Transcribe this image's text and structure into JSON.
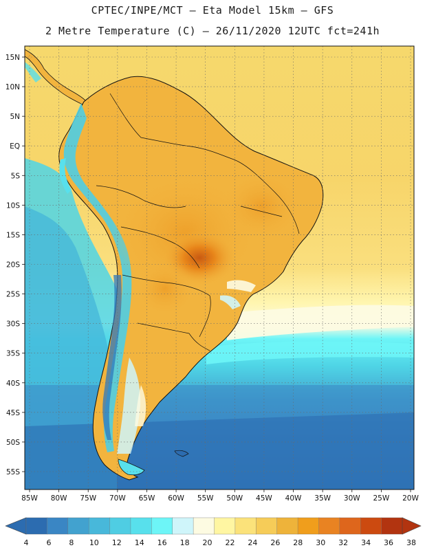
{
  "header": {
    "line1": "CPTEC/INPE/MCT –  Eta Model 15km – GFS",
    "line2": "2 Metre Temperature (C) – 26/11/2020 12UTC fct=241h"
  },
  "axes": {
    "lat_labels": [
      "15N",
      "10N",
      "5N",
      "EQ",
      "5S",
      "10S",
      "15S",
      "20S",
      "25S",
      "30S",
      "35S",
      "40S",
      "45S",
      "50S",
      "55S"
    ],
    "lon_labels": [
      "85W",
      "80W",
      "75W",
      "70W",
      "65W",
      "60W",
      "55W",
      "50W",
      "45W",
      "40W",
      "35W",
      "30W",
      "25W",
      "20W"
    ]
  },
  "colorbar": {
    "labels": [
      "4",
      "6",
      "8",
      "10",
      "12",
      "14",
      "16",
      "18",
      "20",
      "22",
      "24",
      "26",
      "28",
      "30",
      "32",
      "34",
      "36",
      "38"
    ],
    "colors": [
      "#2c6cb0",
      "#3a86c4",
      "#42a2cf",
      "#48b8da",
      "#4fcde3",
      "#58e0ec",
      "#6df5f7",
      "#cff5fa",
      "#fdfbe2",
      "#fff6a2",
      "#fbe27a",
      "#f6cc58",
      "#eeb33a",
      "#f09e1c",
      "#e98322",
      "#de661c",
      "#cc4a10",
      "#b23410"
    ]
  },
  "palette": {
    "land_warm": "#f2b43e",
    "land_hot": "#e8961a",
    "land_hottest": "#c95a12",
    "ocean_warm": "#f7d46a",
    "ocean_pale": "#fff6a8",
    "ocean_cool": "#58e0ec",
    "ocean_cold": "#3a86c4",
    "ocean_coldest": "#2c6cb0"
  }
}
